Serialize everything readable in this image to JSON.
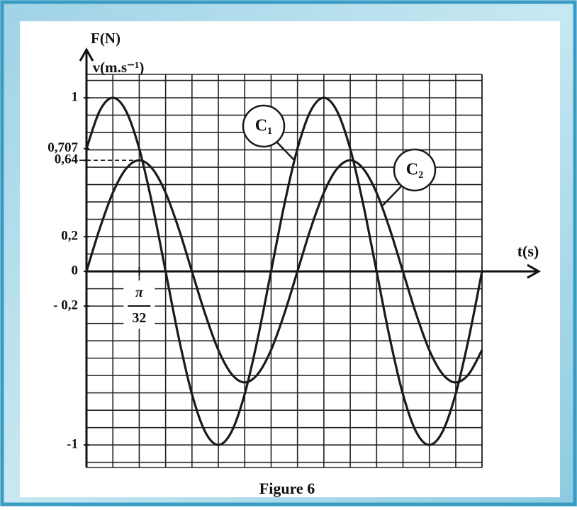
{
  "chart_data": {
    "type": "line",
    "caption": "Figure 6",
    "y_label_top": "F(N)",
    "y_label": "v(m.s⁻¹)",
    "x_label": "t(s)",
    "x": [
      0,
      0.0245,
      0.0491,
      0.0736,
      0.0982,
      0.1227,
      0.1473,
      0.1718,
      0.1963,
      0.2209,
      0.2454,
      0.27,
      0.2945,
      0.3191,
      0.3436,
      0.3682,
      0.3927,
      0.4172,
      0.4418,
      0.4663,
      0.4909,
      0.5154,
      0.54,
      0.5645,
      0.589,
      0.6136,
      0.6381,
      0.6627,
      0.6872,
      0.7118,
      0.7363
    ],
    "series": [
      {
        "name": "C₁",
        "color": "#1a1a1a",
        "values": [
          0.707,
          0.924,
          1,
          0.924,
          0.707,
          0.383,
          0,
          -0.383,
          -0.707,
          -0.924,
          -1,
          -0.924,
          -0.707,
          -0.383,
          0,
          0.383,
          0.707,
          0.924,
          1,
          0.924,
          0.707,
          0.383,
          0,
          -0.383,
          -0.707,
          -0.924,
          -1,
          -0.924,
          -0.707,
          -0.383,
          0
        ]
      },
      {
        "name": "C₂",
        "color": "#1a1a1a",
        "values": [
          0,
          0.245,
          0.453,
          0.591,
          0.64,
          0.591,
          0.453,
          0.245,
          0,
          -0.245,
          -0.453,
          -0.591,
          -0.64,
          -0.591,
          -0.453,
          -0.245,
          0,
          0.245,
          0.453,
          0.591,
          0.64,
          0.591,
          0.453,
          0.245,
          0,
          -0.245,
          -0.453,
          -0.591,
          -0.64,
          -0.591,
          -0.453
        ]
      }
    ],
    "xlim": [
      0,
      0.7363
    ],
    "ylim": [
      -1.13,
      1.135
    ],
    "xticks": [
      {
        "value": 0.0982,
        "label": "π/32"
      }
    ],
    "yticks": [
      1,
      {
        "value": 0.707,
        "label": "0,707"
      },
      {
        "value": 0.64,
        "label": "0,64"
      },
      {
        "value": 0.2,
        "label": "0,2"
      },
      0,
      {
        "value": -0.2,
        "label": "- 0,2"
      },
      -1
    ],
    "grid": true,
    "xgrid_step": 0.0491,
    "ygrid_step": 0.1
  }
}
